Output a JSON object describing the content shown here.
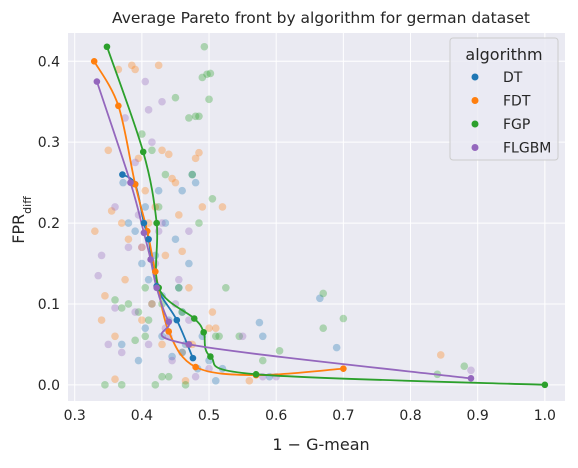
{
  "chart_data": {
    "type": "scatter",
    "title": "Average Pareto front by algorithm for german dataset",
    "xlabel": "1 − G-mean",
    "ylabel_main": "FPR",
    "ylabel_sub": "diff",
    "xlim": [
      0.29,
      1.03
    ],
    "ylim": [
      -0.02,
      0.435
    ],
    "xticks": [
      0.3,
      0.4,
      0.5,
      0.6,
      0.7,
      0.8,
      0.9,
      1.0
    ],
    "xtick_labels": [
      "0.3",
      "0.4",
      "0.5",
      "0.6",
      "0.7",
      "0.8",
      "0.9",
      "1.0"
    ],
    "yticks": [
      0.0,
      0.1,
      0.2,
      0.3,
      0.4
    ],
    "ytick_labels": [
      "0.0",
      "0.1",
      "0.2",
      "0.3",
      "0.4"
    ],
    "grid": true,
    "legend": {
      "title": "algorithm",
      "placement": "top-right"
    },
    "series": [
      {
        "name": "DT",
        "color": "#1f77b4",
        "front": [
          [
            0.371,
            0.26
          ],
          [
            0.39,
            0.248
          ],
          [
            0.403,
            0.2
          ],
          [
            0.41,
            0.18
          ],
          [
            0.422,
            0.122
          ],
          [
            0.452,
            0.08
          ],
          [
            0.476,
            0.033
          ]
        ],
        "scatter": [
          [
            0.372,
            0.25
          ],
          [
            0.38,
            0.2
          ],
          [
            0.39,
            0.19
          ],
          [
            0.4,
            0.15
          ],
          [
            0.405,
            0.22
          ],
          [
            0.41,
            0.13
          ],
          [
            0.415,
            0.1
          ],
          [
            0.42,
            0.16
          ],
          [
            0.425,
            0.24
          ],
          [
            0.43,
            0.06
          ],
          [
            0.435,
            0.2
          ],
          [
            0.44,
            0.08
          ],
          [
            0.45,
            0.18
          ],
          [
            0.455,
            0.12
          ],
          [
            0.46,
            0.24
          ],
          [
            0.465,
            0.05
          ],
          [
            0.47,
            0.15
          ],
          [
            0.475,
            0.26
          ],
          [
            0.48,
            0.25
          ],
          [
            0.483,
            0.02
          ],
          [
            0.49,
            0.06
          ],
          [
            0.5,
            0.03
          ],
          [
            0.51,
            0.005
          ],
          [
            0.52,
            0.02
          ],
          [
            0.575,
            0.077
          ],
          [
            0.58,
            0.06
          ],
          [
            0.59,
            0.01
          ],
          [
            0.665,
            0.107
          ],
          [
            0.69,
            0.046
          ],
          [
            0.37,
            0.05
          ],
          [
            0.395,
            0.03
          ],
          [
            0.405,
            0.07
          ],
          [
            0.43,
            0.11
          ],
          [
            0.445,
            0.035
          ],
          [
            0.46,
            0.09
          ]
        ]
      },
      {
        "name": "FDT",
        "color": "#ff7f0e",
        "front": [
          [
            0.329,
            0.4
          ],
          [
            0.365,
            0.345
          ],
          [
            0.39,
            0.248
          ],
          [
            0.408,
            0.19
          ],
          [
            0.42,
            0.14
          ],
          [
            0.44,
            0.066
          ],
          [
            0.48,
            0.022
          ],
          [
            0.57,
            0.012
          ],
          [
            0.7,
            0.02
          ]
        ],
        "scatter": [
          [
            0.33,
            0.19
          ],
          [
            0.34,
            0.08
          ],
          [
            0.35,
            0.29
          ],
          [
            0.355,
            0.215
          ],
          [
            0.36,
            0.06
          ],
          [
            0.365,
            0.39
          ],
          [
            0.37,
            0.2
          ],
          [
            0.375,
            0.13
          ],
          [
            0.38,
            0.18
          ],
          [
            0.385,
            0.395
          ],
          [
            0.39,
            0.39
          ],
          [
            0.395,
            0.28
          ],
          [
            0.4,
            0.08
          ],
          [
            0.405,
            0.24
          ],
          [
            0.41,
            0.2
          ],
          [
            0.415,
            0.1
          ],
          [
            0.42,
            0.22
          ],
          [
            0.425,
            0.395
          ],
          [
            0.43,
            0.29
          ],
          [
            0.435,
            0.16
          ],
          [
            0.44,
            0.285
          ],
          [
            0.445,
            0.255
          ],
          [
            0.45,
            0.25
          ],
          [
            0.455,
            0.21
          ],
          [
            0.46,
            0.165
          ],
          [
            0.465,
            0.005
          ],
          [
            0.47,
            0.12
          ],
          [
            0.475,
            0.05
          ],
          [
            0.48,
            0.28
          ],
          [
            0.485,
            0.287
          ],
          [
            0.49,
            0.22
          ],
          [
            0.5,
            0.07
          ],
          [
            0.505,
            0.09
          ],
          [
            0.51,
            0.07
          ],
          [
            0.52,
            0.22
          ],
          [
            0.56,
            0.005
          ],
          [
            0.845,
            0.037
          ],
          [
            0.345,
            0.11
          ],
          [
            0.36,
            0.007
          ],
          [
            0.4,
            0.17
          ],
          [
            0.43,
            0.05
          ],
          [
            0.47,
            0.05
          ]
        ]
      },
      {
        "name": "FGP",
        "color": "#2ca02c",
        "front": [
          [
            0.348,
            0.418
          ],
          [
            0.402,
            0.288
          ],
          [
            0.422,
            0.2
          ],
          [
            0.425,
            0.12
          ],
          [
            0.478,
            0.082
          ],
          [
            0.492,
            0.065
          ],
          [
            0.502,
            0.035
          ],
          [
            0.57,
            0.013
          ],
          [
            1.0,
            0.0
          ]
        ],
        "scatter": [
          [
            0.345,
            0.0
          ],
          [
            0.36,
            0.105
          ],
          [
            0.37,
            0.095
          ],
          [
            0.38,
            0.1
          ],
          [
            0.39,
            0.055
          ],
          [
            0.395,
            0.09
          ],
          [
            0.4,
            0.31
          ],
          [
            0.405,
            0.12
          ],
          [
            0.41,
            0.08
          ],
          [
            0.415,
            0.29
          ],
          [
            0.42,
            0.0
          ],
          [
            0.425,
            0.22
          ],
          [
            0.43,
            0.01
          ],
          [
            0.435,
            0.26
          ],
          [
            0.44,
            0.01
          ],
          [
            0.45,
            0.355
          ],
          [
            0.455,
            0.12
          ],
          [
            0.46,
            0.04
          ],
          [
            0.465,
            0.0
          ],
          [
            0.47,
            0.33
          ],
          [
            0.475,
            0.26
          ],
          [
            0.48,
            0.332
          ],
          [
            0.485,
            0.332
          ],
          [
            0.49,
            0.38
          ],
          [
            0.493,
            0.418
          ],
          [
            0.497,
            0.384
          ],
          [
            0.5,
            0.353
          ],
          [
            0.502,
            0.385
          ],
          [
            0.505,
            0.23
          ],
          [
            0.51,
            0.06
          ],
          [
            0.515,
            0.06
          ],
          [
            0.525,
            0.12
          ],
          [
            0.545,
            0.06
          ],
          [
            0.58,
            0.03
          ],
          [
            0.605,
            0.042
          ],
          [
            0.67,
            0.113
          ],
          [
            0.67,
            0.07
          ],
          [
            0.7,
            0.082
          ],
          [
            0.84,
            0.013
          ],
          [
            0.88,
            0.023
          ],
          [
            0.37,
            0.0
          ],
          [
            0.405,
            0.06
          ],
          [
            0.43,
            0.1
          ],
          [
            0.46,
            0.09
          ],
          [
            0.485,
            0.2
          ]
        ]
      },
      {
        "name": "FLGBM",
        "color": "#9467bd",
        "front": [
          [
            0.333,
            0.375
          ],
          [
            0.383,
            0.25
          ],
          [
            0.403,
            0.188
          ],
          [
            0.413,
            0.155
          ],
          [
            0.422,
            0.12
          ],
          [
            0.44,
            0.078
          ],
          [
            0.47,
            0.05
          ],
          [
            0.89,
            0.008
          ]
        ],
        "scatter": [
          [
            0.335,
            0.135
          ],
          [
            0.34,
            0.16
          ],
          [
            0.35,
            0.05
          ],
          [
            0.36,
            0.22
          ],
          [
            0.37,
            0.04
          ],
          [
            0.375,
            0.33
          ],
          [
            0.38,
            0.17
          ],
          [
            0.385,
            0.25
          ],
          [
            0.39,
            0.275
          ],
          [
            0.395,
            0.21
          ],
          [
            0.4,
            0.17
          ],
          [
            0.405,
            0.375
          ],
          [
            0.41,
            0.34
          ],
          [
            0.415,
            0.3
          ],
          [
            0.42,
            0.15
          ],
          [
            0.425,
            0.19
          ],
          [
            0.43,
            0.2
          ],
          [
            0.435,
            0.07
          ],
          [
            0.44,
            0.06
          ],
          [
            0.45,
            0.1
          ],
          [
            0.455,
            0.13
          ],
          [
            0.46,
            0.04
          ],
          [
            0.47,
            0.08
          ],
          [
            0.48,
            0.01
          ],
          [
            0.5,
            0.02
          ],
          [
            0.55,
            0.06
          ],
          [
            0.58,
            0.01
          ],
          [
            0.6,
            0.01
          ],
          [
            0.89,
            0.018
          ],
          [
            0.36,
            0.095
          ],
          [
            0.39,
            0.09
          ],
          [
            0.41,
            0.05
          ],
          [
            0.445,
            0.03
          ],
          [
            0.47,
            0.19
          ],
          [
            0.43,
            0.35
          ]
        ]
      }
    ]
  }
}
